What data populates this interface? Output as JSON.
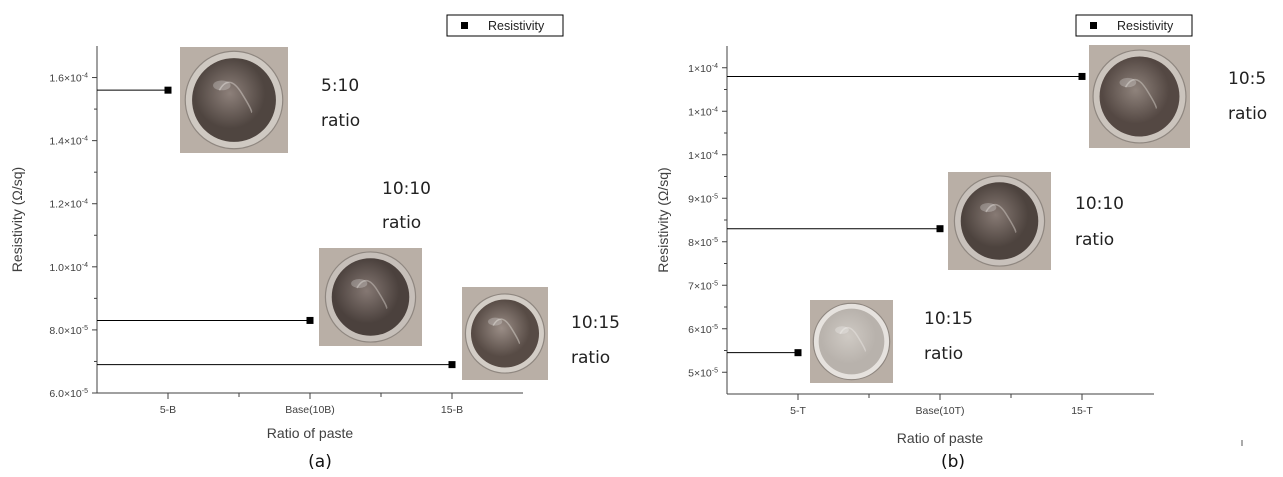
{
  "chart_data": [
    {
      "type": "scatter",
      "panel_label": "(a)",
      "xlabel": "Ratio of paste",
      "ylabel": "Resistivity (Ω/sq)",
      "categories": [
        "5-B",
        "Base(10B)",
        "15-B"
      ],
      "series": [
        {
          "name": "Resistivity",
          "values": [
            0.000156,
            8.3e-05,
            6.9e-05
          ]
        }
      ],
      "ylim": [
        6e-05,
        0.00017
      ],
      "yticks": [
        {
          "value": 6e-05,
          "mantissa": "6.0×10",
          "exp": "-5"
        },
        {
          "value": 8e-05,
          "mantissa": "8.0×10",
          "exp": "-5"
        },
        {
          "value": 0.0001,
          "mantissa": "1.0×10",
          "exp": "-4"
        },
        {
          "value": 0.00012,
          "mantissa": "1.2×10",
          "exp": "-4"
        },
        {
          "value": 0.00014,
          "mantissa": "1.4×10",
          "exp": "-4"
        },
        {
          "value": 0.00016,
          "mantissa": "1.6×10",
          "exp": "-4"
        }
      ],
      "grid": false,
      "legend_position": "top-right",
      "annotations": [
        {
          "line1": "5:10",
          "line2": "ratio",
          "image": "paste-sample-5-B"
        },
        {
          "line1": "10:10",
          "line2": "ratio",
          "image": "paste-sample-base-10B"
        },
        {
          "line1": "10:15",
          "line2": "ratio",
          "image": "paste-sample-15-B"
        }
      ]
    },
    {
      "type": "scatter",
      "panel_label": "(b)",
      "xlabel": "Ratio of paste",
      "ylabel": "Resistivity (Ω/sq)",
      "categories": [
        "5-T",
        "Base(10T)",
        "15-T"
      ],
      "series": [
        {
          "name": "Resistivity",
          "values": [
            5.45e-05,
            8.3e-05,
            0.000118
          ]
        }
      ],
      "ylim": [
        4.5e-05,
        0.000125
      ],
      "yticks": [
        {
          "value": 5e-05,
          "mantissa": "5×10",
          "exp": "-5"
        },
        {
          "value": 6e-05,
          "mantissa": "6×10",
          "exp": "-5"
        },
        {
          "value": 7e-05,
          "mantissa": "7×10",
          "exp": "-5"
        },
        {
          "value": 8e-05,
          "mantissa": "8×10",
          "exp": "-5"
        },
        {
          "value": 9e-05,
          "mantissa": "9×10",
          "exp": "-5"
        },
        {
          "value": 0.0001,
          "mantissa": "1×10",
          "exp": "-4"
        },
        {
          "value": 0.00011,
          "mantissa": "1×10",
          "exp": "-4"
        },
        {
          "value": 0.00012,
          "mantissa": "1×10",
          "exp": "-4"
        }
      ],
      "grid": false,
      "legend_position": "top-right",
      "annotations": [
        {
          "line1": "10:5",
          "line2": "ratio",
          "image": "paste-sample-5-T"
        },
        {
          "line1": "10:10",
          "line2": "ratio",
          "image": "paste-sample-base-10T"
        },
        {
          "line1": "10:15",
          "line2": "ratio",
          "image": "paste-sample-15-T"
        }
      ]
    }
  ],
  "colors": {
    "axis": "#404040",
    "marker": "#000000",
    "dish_dark": "#5a4f4a",
    "dish_mid": "#8a7d76",
    "dish_light": "#c9c4be",
    "dish_bg": "#b9afa6"
  }
}
